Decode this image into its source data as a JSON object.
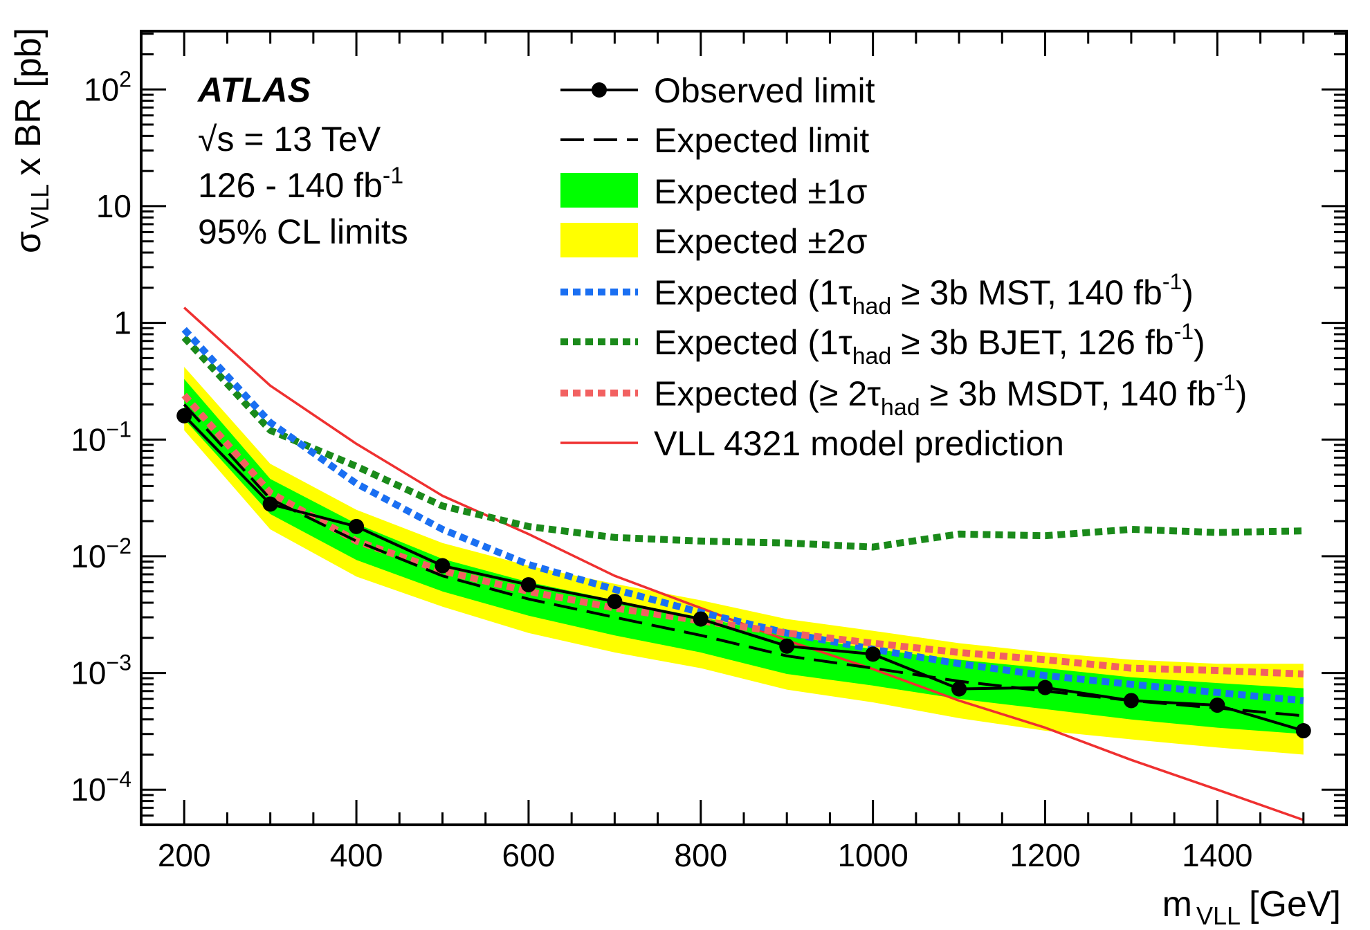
{
  "chart_data": {
    "type": "line",
    "yscale": "log",
    "xlim": [
      150,
      1550
    ],
    "ylim": [
      5e-05,
      316
    ],
    "xlabel": {
      "main": "m",
      "sub": "VLL",
      "unit": "[GeV]"
    },
    "ylabel": {
      "main": "σ",
      "sub": "VLL",
      "rest": "x BR [pb]"
    },
    "x_tick_labels": [
      "200",
      "400",
      "600",
      "800",
      "1000",
      "1200",
      "1400"
    ],
    "x_ticks": [
      200,
      400,
      600,
      800,
      1000,
      1200,
      1400
    ],
    "y_ticks": [
      {
        "value": 0.0001,
        "base": "10",
        "exp": "−4"
      },
      {
        "value": 0.001,
        "base": "10",
        "exp": "−3"
      },
      {
        "value": 0.01,
        "base": "10",
        "exp": "−2"
      },
      {
        "value": 0.1,
        "base": "10",
        "exp": "−1"
      },
      {
        "value": 1,
        "base": "1",
        "exp": ""
      },
      {
        "value": 10,
        "base": "10",
        "exp": ""
      },
      {
        "value": 100,
        "base": "10",
        "exp": "2"
      }
    ],
    "x": [
      200,
      300,
      400,
      500,
      600,
      700,
      800,
      900,
      1000,
      1100,
      1200,
      1300,
      1400,
      1500
    ],
    "series": [
      {
        "name": "Observed limit",
        "style": "observed",
        "color": "#000000",
        "values": [
          0.16,
          0.028,
          0.018,
          0.0083,
          0.0057,
          0.0041,
          0.0029,
          0.0017,
          0.00145,
          0.00073,
          0.00075,
          0.00058,
          0.00053,
          0.00032
        ]
      },
      {
        "name": "Expected limit",
        "style": "expected",
        "color": "#000000",
        "values": [
          0.2,
          0.031,
          0.0135,
          0.0068,
          0.0043,
          0.003,
          0.0021,
          0.0014,
          0.0011,
          0.00085,
          0.0007,
          0.00058,
          0.0005,
          0.00043
        ]
      },
      {
        "name": "Expected (1τhad ≥ 3b MST, 140 fb-1)",
        "style": "dotted",
        "color": "#1a6ff2",
        "values": [
          0.88,
          0.14,
          0.042,
          0.017,
          0.0085,
          0.0052,
          0.0033,
          0.0022,
          0.0016,
          0.0012,
          0.00095,
          0.0008,
          0.00068,
          0.00058
        ]
      },
      {
        "name": "Expected (1τhad ≥ 3b BJET, 126 fb-1)",
        "style": "dotted",
        "color": "#1a8a1a",
        "values": [
          0.75,
          0.12,
          0.059,
          0.027,
          0.018,
          0.0145,
          0.0135,
          0.013,
          0.012,
          0.0155,
          0.015,
          0.017,
          0.016,
          0.0165
        ]
      },
      {
        "name": "Expected (≥ 2τhad ≥ 3b MSDT, 140 fb-1)",
        "style": "dotted",
        "color": "#f26161",
        "values": [
          0.24,
          0.035,
          0.0135,
          0.0075,
          0.005,
          0.0036,
          0.0028,
          0.0022,
          0.0018,
          0.0015,
          0.0013,
          0.0011,
          0.00105,
          0.00098
        ]
      },
      {
        "name": "VLL 4321 model prediction",
        "style": "solid",
        "color": "#ef3030",
        "values": [
          1.35,
          0.29,
          0.092,
          0.033,
          0.0155,
          0.0068,
          0.0036,
          0.0019,
          0.00108,
          0.00058,
          0.00034,
          0.00018,
          0.0001,
          5.5e-05
        ]
      }
    ],
    "bands": [
      {
        "name": "Expected ±2σ",
        "color": "#ffff00",
        "low": [
          0.12,
          0.017,
          0.0067,
          0.0037,
          0.0022,
          0.0015,
          0.0011,
          0.00072,
          0.00056,
          0.00041,
          0.00032,
          0.00027,
          0.00023,
          0.0002
        ],
        "high": [
          0.42,
          0.062,
          0.025,
          0.013,
          0.0083,
          0.0058,
          0.0042,
          0.0029,
          0.0023,
          0.0018,
          0.0015,
          0.0013,
          0.0012,
          0.0012
        ]
      },
      {
        "name": "Expected ±1σ",
        "color": "#00ff00",
        "low": [
          0.15,
          0.023,
          0.0093,
          0.005,
          0.0031,
          0.0021,
          0.0015,
          0.00098,
          0.00078,
          0.0006,
          0.00049,
          0.0004,
          0.00034,
          0.0003
        ],
        "high": [
          0.33,
          0.046,
          0.019,
          0.0095,
          0.006,
          0.0042,
          0.003,
          0.0021,
          0.0016,
          0.0013,
          0.0011,
          0.00092,
          0.00082,
          0.00074
        ]
      }
    ],
    "legend": {
      "placement": "top-right",
      "entries": [
        {
          "style": "observed",
          "color": "#000000",
          "text": "Observed limit"
        },
        {
          "style": "expected",
          "color": "#000000",
          "text": "Expected limit"
        },
        {
          "style": "band",
          "color": "#00ff00",
          "text": "Expected ±1σ"
        },
        {
          "style": "band",
          "color": "#ffff00",
          "text": "Expected ±2σ"
        },
        {
          "style": "dotted",
          "color": "#1a6ff2",
          "pre": "Expected (1τ",
          "sub": "had",
          "mid": " ≥ 3b MST, 140 fb",
          "sup": "-1",
          "post": ")"
        },
        {
          "style": "dotted",
          "color": "#1a8a1a",
          "pre": "Expected (1τ",
          "sub": "had",
          "mid": " ≥ 3b BJET, 126 fb",
          "sup": "-1",
          "post": ")"
        },
        {
          "style": "dotted",
          "color": "#f26161",
          "pre": "Expected (≥ 2τ",
          "sub": "had",
          "mid": " ≥ 3b MSDT, 140 fb",
          "sup": "-1",
          "post": ")"
        },
        {
          "style": "solid",
          "color": "#ef3030",
          "text": "VLL 4321 model prediction"
        }
      ]
    },
    "annotations": {
      "experiment": "ATLAS",
      "energy": {
        "root": "√s",
        "rest": " = 13 TeV"
      },
      "luminosity": {
        "text": "126 - 140 fb",
        "sup": "-1"
      },
      "limits": "95% CL limits"
    }
  }
}
